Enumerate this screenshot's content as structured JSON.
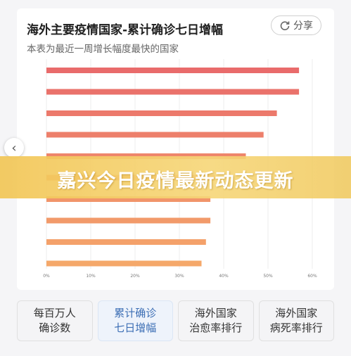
{
  "header": {
    "title": "海外主要疫情国家-累计确诊七日增幅",
    "subtitle": "本表为最近一周增长幅度最快的国家",
    "share_label": "分享"
  },
  "banner": {
    "text": "嘉兴今日疫情最新动态更新"
  },
  "colors": {
    "bar_top": "#e96b6b",
    "bar_bottom": "#f5a86a"
  },
  "chart_data": {
    "type": "bar",
    "orientation": "horizontal",
    "categories": [
      "",
      "",
      "",
      "",
      "",
      "",
      "",
      "",
      "",
      ""
    ],
    "values": [
      57,
      57,
      52,
      49,
      45,
      38,
      37,
      37,
      36,
      35
    ],
    "xticks": [
      "0%",
      "10%",
      "20%",
      "30%",
      "40%",
      "50%",
      "60%"
    ],
    "xlim": [
      0,
      60
    ],
    "grid": true
  },
  "tabs": [
    {
      "line1": "每百万人",
      "line2": "确诊数",
      "active": false
    },
    {
      "line1": "累计确诊",
      "line2": "七日增幅",
      "active": true
    },
    {
      "line1": "海外国家",
      "line2": "治愈率排行",
      "active": false
    },
    {
      "line1": "海外国家",
      "line2": "病死率排行",
      "active": false
    }
  ]
}
